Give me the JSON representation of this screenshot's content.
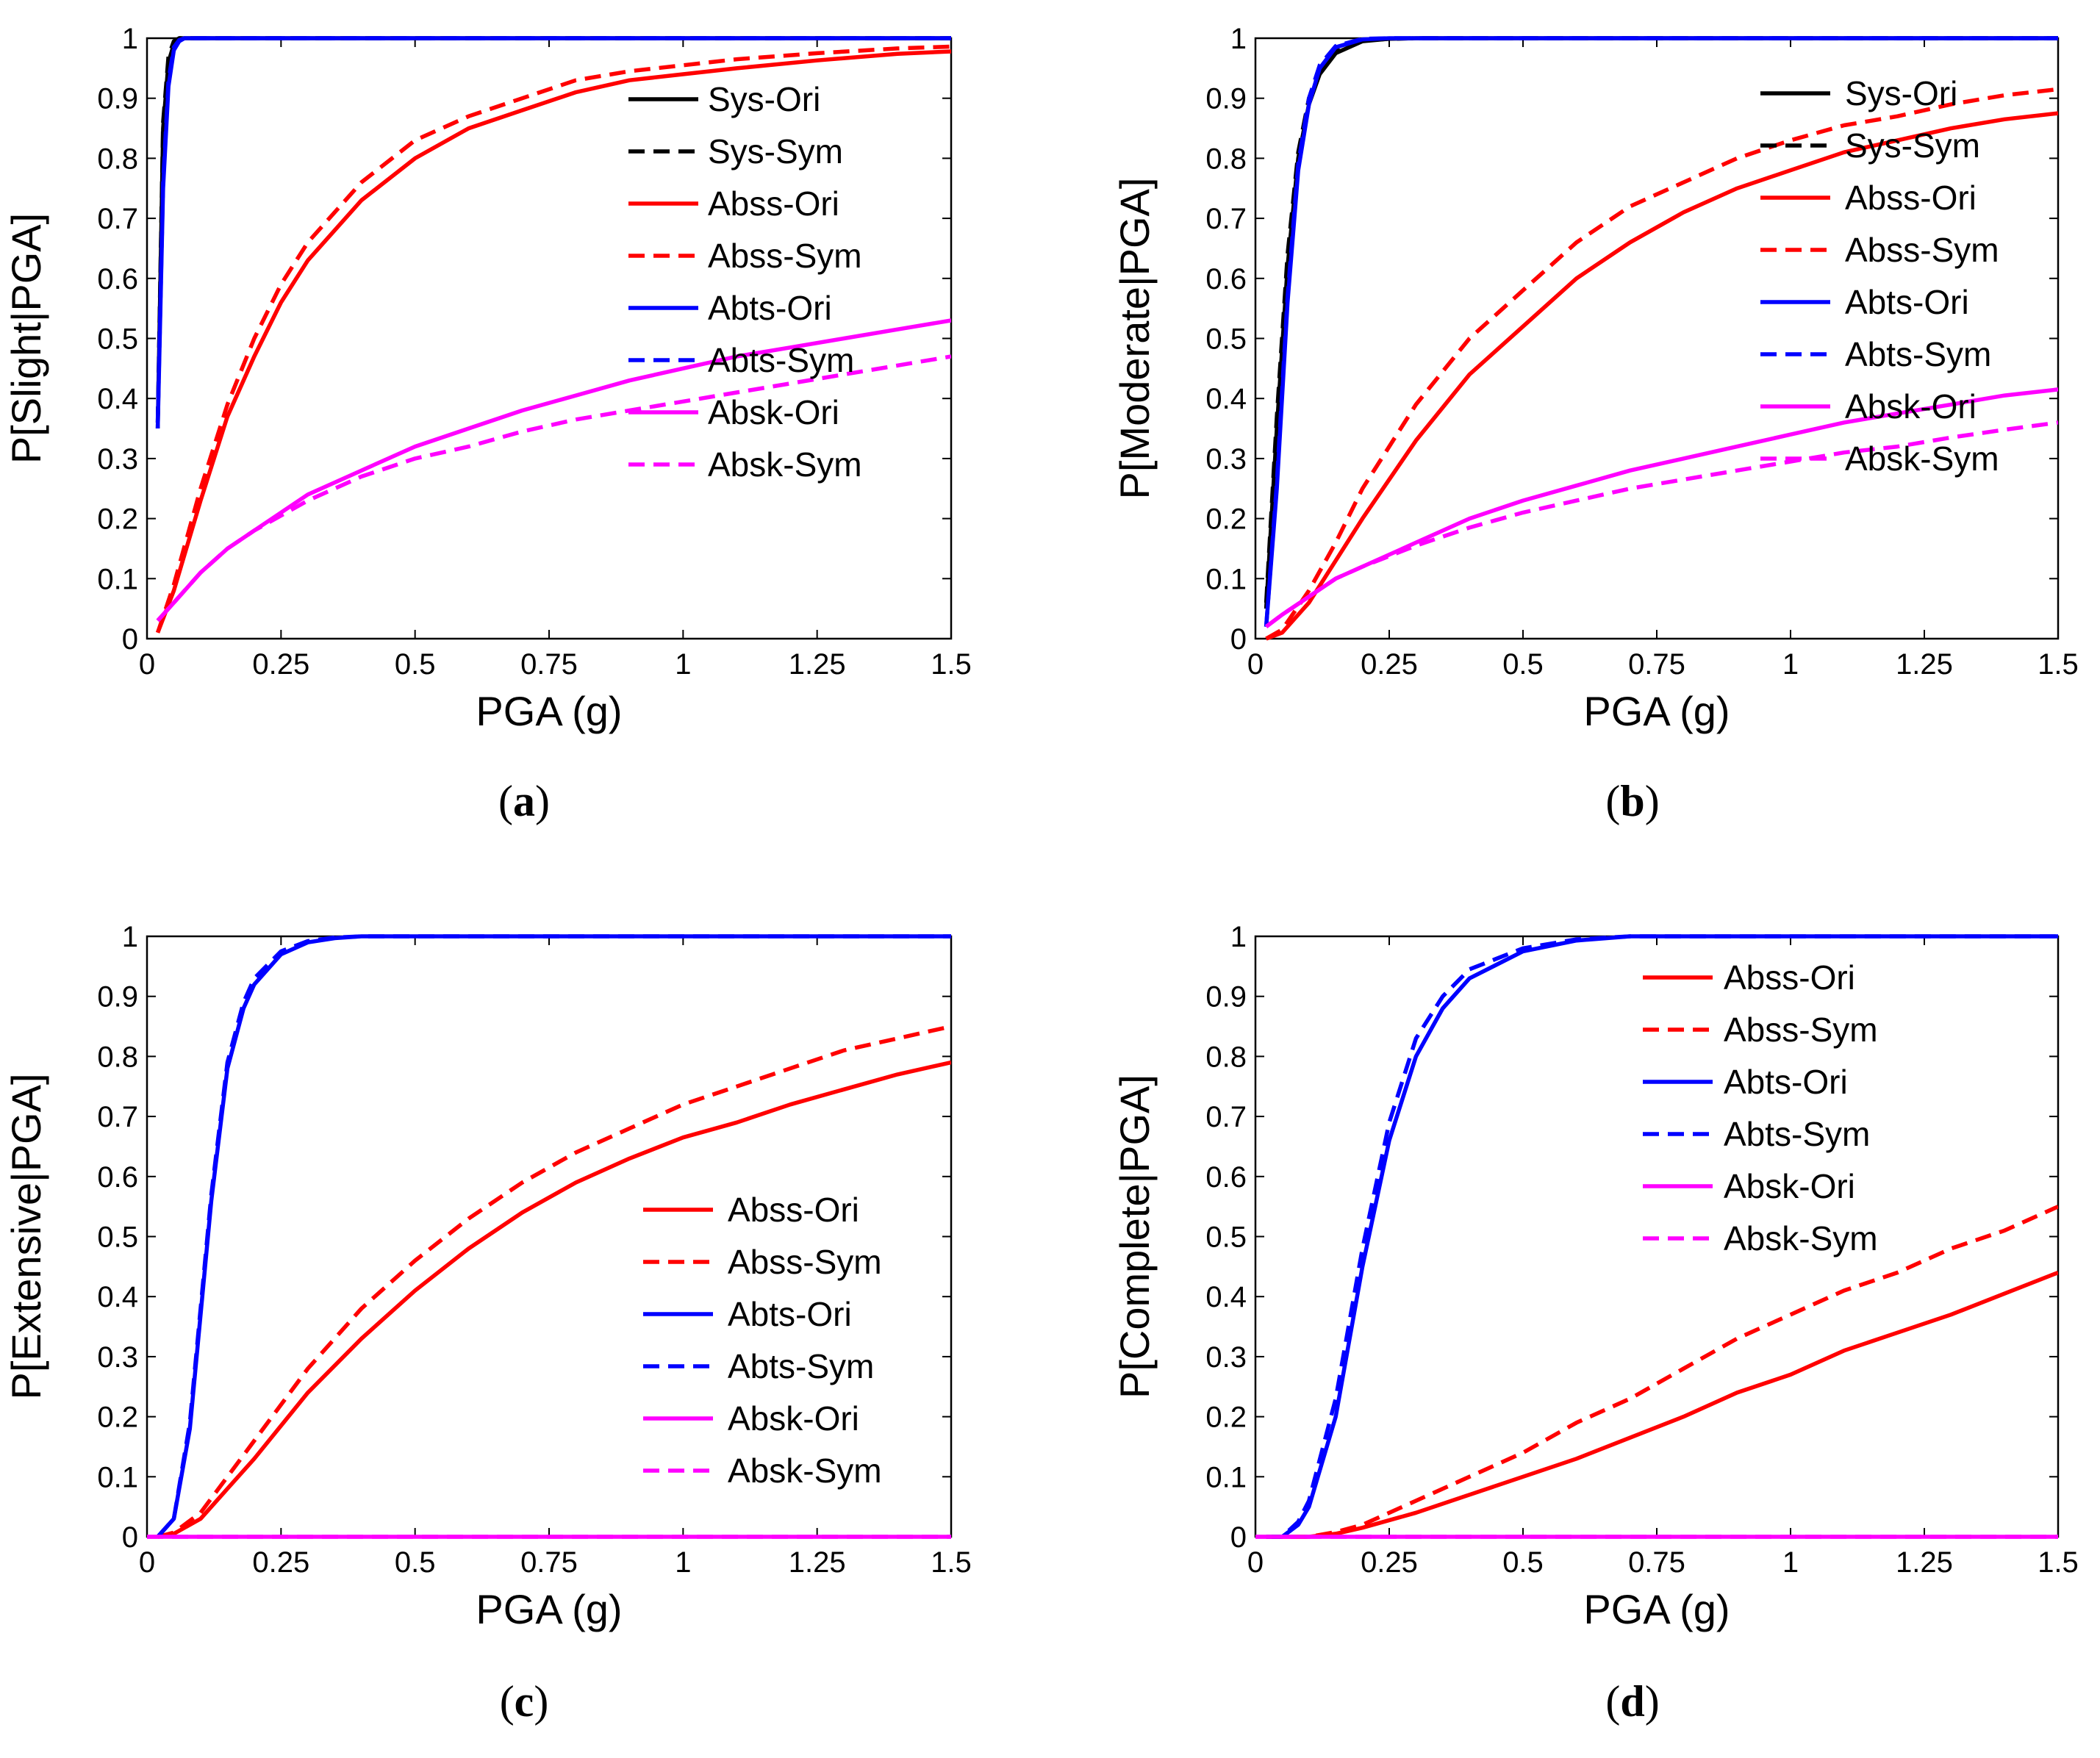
{
  "figure": {
    "panels": [
      "a",
      "b",
      "c",
      "d"
    ]
  },
  "chart_data": [
    {
      "panel": "a",
      "caption": "a",
      "type": "line",
      "title": "",
      "xlabel": "PGA (g)",
      "ylabel": "P[Slight|PGA]",
      "xlim": [
        0,
        1.5
      ],
      "ylim": [
        0,
        1
      ],
      "xticks": [
        "0",
        "0.25",
        "0.5",
        "0.75",
        "1",
        "1.25",
        "1.5"
      ],
      "yticks": [
        "0",
        "0.1",
        "0.2",
        "0.3",
        "0.4",
        "0.5",
        "0.6",
        "0.7",
        "0.8",
        "0.9",
        "1"
      ],
      "legend_position": "right",
      "series": [
        {
          "name": "Sys-Ori",
          "color": "#000000",
          "dash": false,
          "x": [
            0.02,
            0.03,
            0.04,
            0.05,
            0.06,
            1.5
          ],
          "y": [
            0.35,
            0.85,
            0.96,
            0.99,
            1.0,
            1.0
          ]
        },
        {
          "name": "Sys-Sym",
          "color": "#000000",
          "dash": true,
          "x": [
            0.02,
            0.03,
            0.04,
            0.05,
            0.06,
            1.5
          ],
          "y": [
            0.36,
            0.86,
            0.97,
            0.995,
            1.0,
            1.0
          ]
        },
        {
          "name": "Abss-Ori",
          "color": "#ff0000",
          "dash": false,
          "x": [
            0.02,
            0.05,
            0.1,
            0.15,
            0.2,
            0.25,
            0.3,
            0.4,
            0.5,
            0.6,
            0.7,
            0.8,
            0.9,
            1.0,
            1.1,
            1.25,
            1.4,
            1.5
          ],
          "y": [
            0.01,
            0.08,
            0.23,
            0.37,
            0.47,
            0.56,
            0.63,
            0.73,
            0.8,
            0.85,
            0.88,
            0.91,
            0.93,
            0.94,
            0.95,
            0.963,
            0.974,
            0.978
          ]
        },
        {
          "name": "Abss-Sym",
          "color": "#ff0000",
          "dash": true,
          "x": [
            0.02,
            0.05,
            0.1,
            0.15,
            0.2,
            0.25,
            0.3,
            0.4,
            0.5,
            0.6,
            0.7,
            0.8,
            0.9,
            1.0,
            1.1,
            1.25,
            1.4,
            1.5
          ],
          "y": [
            0.01,
            0.09,
            0.25,
            0.39,
            0.5,
            0.59,
            0.66,
            0.76,
            0.83,
            0.87,
            0.9,
            0.93,
            0.945,
            0.955,
            0.965,
            0.975,
            0.983,
            0.986
          ]
        },
        {
          "name": "Abts-Ori",
          "color": "#0000ff",
          "dash": false,
          "x": [
            0.02,
            0.03,
            0.04,
            0.05,
            0.06,
            0.07,
            1.5
          ],
          "y": [
            0.35,
            0.75,
            0.92,
            0.98,
            0.995,
            1.0,
            1.0
          ]
        },
        {
          "name": "Abts-Sym",
          "color": "#0000ff",
          "dash": true,
          "x": [
            0.02,
            0.03,
            0.04,
            0.05,
            0.06,
            0.07,
            1.5
          ],
          "y": [
            0.36,
            0.76,
            0.93,
            0.985,
            0.997,
            1.0,
            1.0
          ]
        },
        {
          "name": "Absk-Ori",
          "color": "#ff00ff",
          "dash": false,
          "x": [
            0.02,
            0.05,
            0.1,
            0.15,
            0.2,
            0.3,
            0.4,
            0.5,
            0.6,
            0.7,
            0.8,
            0.9,
            1.0,
            1.1,
            1.2,
            1.3,
            1.4,
            1.5
          ],
          "y": [
            0.03,
            0.06,
            0.11,
            0.15,
            0.18,
            0.24,
            0.28,
            0.32,
            0.35,
            0.38,
            0.405,
            0.43,
            0.45,
            0.47,
            0.485,
            0.5,
            0.515,
            0.53
          ]
        },
        {
          "name": "Absk-Sym",
          "color": "#ff00ff",
          "dash": true,
          "x": [
            0.02,
            0.05,
            0.1,
            0.15,
            0.2,
            0.3,
            0.4,
            0.5,
            0.6,
            0.7,
            0.8,
            0.9,
            1.0,
            1.1,
            1.2,
            1.3,
            1.4,
            1.5
          ],
          "y": [
            0.03,
            0.06,
            0.11,
            0.15,
            0.18,
            0.23,
            0.27,
            0.3,
            0.32,
            0.345,
            0.365,
            0.38,
            0.395,
            0.41,
            0.425,
            0.44,
            0.455,
            0.47
          ]
        }
      ]
    },
    {
      "panel": "b",
      "caption": "b",
      "type": "line",
      "title": "",
      "xlabel": "PGA (g)",
      "ylabel": "P[Moderate|PGA]",
      "xlim": [
        0,
        1.5
      ],
      "ylim": [
        0,
        1
      ],
      "xticks": [
        "0",
        "0.25",
        "0.5",
        "0.75",
        "1",
        "1.25",
        "1.5"
      ],
      "yticks": [
        "0",
        "0.1",
        "0.2",
        "0.3",
        "0.4",
        "0.5",
        "0.6",
        "0.7",
        "0.8",
        "0.9",
        "1"
      ],
      "legend_position": "right",
      "series": [
        {
          "name": "Sys-Ori",
          "color": "#000000",
          "dash": false,
          "x": [
            0.02,
            0.04,
            0.06,
            0.08,
            0.1,
            0.12,
            0.15,
            0.2,
            0.25,
            0.3,
            1.5
          ],
          "y": [
            0.05,
            0.35,
            0.62,
            0.8,
            0.89,
            0.94,
            0.975,
            0.995,
            0.999,
            1.0,
            1.0
          ]
        },
        {
          "name": "Sys-Sym",
          "color": "#000000",
          "dash": true,
          "x": [
            0.02,
            0.04,
            0.06,
            0.08,
            0.1,
            0.12,
            0.15,
            0.2,
            0.25,
            0.3,
            1.5
          ],
          "y": [
            0.06,
            0.37,
            0.64,
            0.81,
            0.9,
            0.945,
            0.978,
            0.996,
            0.999,
            1.0,
            1.0
          ]
        },
        {
          "name": "Abss-Ori",
          "color": "#ff0000",
          "dash": false,
          "x": [
            0.02,
            0.05,
            0.1,
            0.15,
            0.2,
            0.3,
            0.4,
            0.5,
            0.6,
            0.7,
            0.8,
            0.9,
            1.0,
            1.1,
            1.2,
            1.3,
            1.4,
            1.5
          ],
          "y": [
            0.0,
            0.01,
            0.06,
            0.13,
            0.2,
            0.33,
            0.44,
            0.52,
            0.6,
            0.66,
            0.71,
            0.75,
            0.78,
            0.81,
            0.83,
            0.85,
            0.865,
            0.875
          ]
        },
        {
          "name": "Abss-Sym",
          "color": "#ff0000",
          "dash": true,
          "x": [
            0.02,
            0.05,
            0.1,
            0.15,
            0.2,
            0.3,
            0.4,
            0.5,
            0.6,
            0.7,
            0.8,
            0.9,
            1.0,
            1.1,
            1.2,
            1.3,
            1.4,
            1.5
          ],
          "y": [
            0.0,
            0.015,
            0.08,
            0.16,
            0.25,
            0.39,
            0.5,
            0.58,
            0.66,
            0.72,
            0.76,
            0.8,
            0.83,
            0.855,
            0.87,
            0.89,
            0.905,
            0.915
          ]
        },
        {
          "name": "Abts-Ori",
          "color": "#0000ff",
          "dash": false,
          "x": [
            0.02,
            0.04,
            0.06,
            0.08,
            0.1,
            0.12,
            0.15,
            0.2,
            0.25,
            1.5
          ],
          "y": [
            0.02,
            0.25,
            0.56,
            0.78,
            0.89,
            0.95,
            0.985,
            0.998,
            1.0,
            1.0
          ]
        },
        {
          "name": "Abts-Sym",
          "color": "#0000ff",
          "dash": true,
          "x": [
            0.02,
            0.04,
            0.06,
            0.08,
            0.1,
            0.12,
            0.15,
            0.2,
            0.25,
            1.5
          ],
          "y": [
            0.02,
            0.26,
            0.57,
            0.79,
            0.9,
            0.955,
            0.987,
            0.999,
            1.0,
            1.0
          ]
        },
        {
          "name": "Absk-Ori",
          "color": "#ff00ff",
          "dash": false,
          "x": [
            0.02,
            0.05,
            0.1,
            0.15,
            0.2,
            0.3,
            0.4,
            0.5,
            0.6,
            0.7,
            0.8,
            0.9,
            1.0,
            1.1,
            1.2,
            1.3,
            1.4,
            1.5
          ],
          "y": [
            0.02,
            0.04,
            0.07,
            0.1,
            0.12,
            0.16,
            0.2,
            0.23,
            0.255,
            0.28,
            0.3,
            0.32,
            0.34,
            0.36,
            0.375,
            0.39,
            0.405,
            0.415
          ]
        },
        {
          "name": "Absk-Sym",
          "color": "#ff00ff",
          "dash": true,
          "x": [
            0.02,
            0.05,
            0.1,
            0.15,
            0.2,
            0.3,
            0.4,
            0.5,
            0.6,
            0.7,
            0.8,
            0.9,
            1.0,
            1.1,
            1.2,
            1.3,
            1.4,
            1.5
          ],
          "y": [
            0.02,
            0.04,
            0.07,
            0.1,
            0.12,
            0.155,
            0.185,
            0.21,
            0.23,
            0.25,
            0.265,
            0.28,
            0.295,
            0.31,
            0.32,
            0.335,
            0.348,
            0.36
          ]
        }
      ]
    },
    {
      "panel": "c",
      "caption": "c",
      "type": "line",
      "title": "",
      "xlabel": "PGA (g)",
      "ylabel": "P[Extensive|PGA]",
      "xlim": [
        0,
        1.5
      ],
      "ylim": [
        0,
        1
      ],
      "xticks": [
        "0",
        "0.25",
        "0.5",
        "0.75",
        "1",
        "1.25",
        "1.5"
      ],
      "yticks": [
        "0",
        "0.1",
        "0.2",
        "0.3",
        "0.4",
        "0.5",
        "0.6",
        "0.7",
        "0.8",
        "0.9",
        "1"
      ],
      "legend_position": "lower right",
      "series": [
        {
          "name": "Abss-Ori",
          "color": "#ff0000",
          "dash": false,
          "x": [
            0.02,
            0.05,
            0.1,
            0.15,
            0.2,
            0.3,
            0.4,
            0.5,
            0.6,
            0.7,
            0.8,
            0.9,
            1.0,
            1.1,
            1.2,
            1.3,
            1.4,
            1.5
          ],
          "y": [
            0.0,
            0.005,
            0.03,
            0.08,
            0.13,
            0.24,
            0.33,
            0.41,
            0.48,
            0.54,
            0.59,
            0.63,
            0.665,
            0.69,
            0.72,
            0.745,
            0.77,
            0.79
          ]
        },
        {
          "name": "Abss-Sym",
          "color": "#ff0000",
          "dash": true,
          "x": [
            0.02,
            0.05,
            0.1,
            0.15,
            0.2,
            0.3,
            0.4,
            0.5,
            0.6,
            0.7,
            0.8,
            0.9,
            1.0,
            1.1,
            1.2,
            1.3,
            1.4,
            1.5
          ],
          "y": [
            0.0,
            0.007,
            0.04,
            0.1,
            0.16,
            0.28,
            0.38,
            0.46,
            0.53,
            0.59,
            0.64,
            0.68,
            0.72,
            0.75,
            0.78,
            0.81,
            0.83,
            0.85
          ]
        },
        {
          "name": "Abts-Ori",
          "color": "#0000ff",
          "dash": false,
          "x": [
            0.02,
            0.05,
            0.08,
            0.1,
            0.12,
            0.15,
            0.18,
            0.2,
            0.25,
            0.3,
            0.35,
            0.4,
            1.5
          ],
          "y": [
            0.0,
            0.03,
            0.18,
            0.37,
            0.56,
            0.78,
            0.88,
            0.92,
            0.97,
            0.99,
            0.997,
            1.0,
            1.0
          ]
        },
        {
          "name": "Abts-Sym",
          "color": "#0000ff",
          "dash": true,
          "x": [
            0.02,
            0.05,
            0.08,
            0.1,
            0.12,
            0.15,
            0.18,
            0.2,
            0.25,
            0.3,
            0.35,
            0.4,
            1.5
          ],
          "y": [
            0.0,
            0.03,
            0.19,
            0.38,
            0.57,
            0.79,
            0.89,
            0.93,
            0.975,
            0.992,
            0.998,
            1.0,
            1.0
          ]
        },
        {
          "name": "Absk-Ori",
          "color": "#ff00ff",
          "dash": false,
          "x": [
            0.0,
            1.5
          ],
          "y": [
            0.0,
            0.0
          ]
        },
        {
          "name": "Absk-Sym",
          "color": "#ff00ff",
          "dash": true,
          "x": [
            0.0,
            1.5
          ],
          "y": [
            0.0,
            0.0
          ]
        }
      ]
    },
    {
      "panel": "d",
      "caption": "d",
      "type": "line",
      "title": "",
      "xlabel": "PGA (g)",
      "ylabel": "P[Complete|PGA]",
      "xlim": [
        0,
        1.5
      ],
      "ylim": [
        0,
        1
      ],
      "xticks": [
        "0",
        "0.25",
        "0.5",
        "0.75",
        "1",
        "1.25",
        "1.5"
      ],
      "yticks": [
        "0",
        "0.1",
        "0.2",
        "0.3",
        "0.4",
        "0.5",
        "0.6",
        "0.7",
        "0.8",
        "0.9",
        "1"
      ],
      "legend_position": "top-right",
      "series": [
        {
          "name": "Abss-Ori",
          "color": "#ff0000",
          "dash": false,
          "x": [
            0.02,
            0.1,
            0.15,
            0.2,
            0.3,
            0.4,
            0.5,
            0.6,
            0.7,
            0.8,
            0.9,
            1.0,
            1.1,
            1.2,
            1.3,
            1.4,
            1.5
          ],
          "y": [
            0.0,
            0.0,
            0.005,
            0.015,
            0.04,
            0.07,
            0.1,
            0.13,
            0.165,
            0.2,
            0.24,
            0.27,
            0.31,
            0.34,
            0.37,
            0.405,
            0.44
          ]
        },
        {
          "name": "Abss-Sym",
          "color": "#ff0000",
          "dash": true,
          "x": [
            0.02,
            0.1,
            0.15,
            0.2,
            0.3,
            0.4,
            0.5,
            0.6,
            0.7,
            0.8,
            0.9,
            1.0,
            1.1,
            1.2,
            1.3,
            1.4,
            1.5
          ],
          "y": [
            0.0,
            0.0,
            0.008,
            0.02,
            0.06,
            0.1,
            0.14,
            0.19,
            0.23,
            0.28,
            0.33,
            0.37,
            0.41,
            0.44,
            0.48,
            0.51,
            0.55
          ]
        },
        {
          "name": "Abts-Ori",
          "color": "#0000ff",
          "dash": false,
          "x": [
            0.02,
            0.05,
            0.08,
            0.1,
            0.15,
            0.2,
            0.25,
            0.3,
            0.35,
            0.4,
            0.5,
            0.6,
            0.7,
            1.5
          ],
          "y": [
            0.0,
            0.0,
            0.02,
            0.05,
            0.2,
            0.45,
            0.66,
            0.8,
            0.88,
            0.93,
            0.975,
            0.993,
            1.0,
            1.0
          ]
        },
        {
          "name": "Abts-Sym",
          "color": "#0000ff",
          "dash": true,
          "x": [
            0.02,
            0.05,
            0.08,
            0.1,
            0.15,
            0.2,
            0.25,
            0.3,
            0.35,
            0.4,
            0.5,
            0.6,
            0.7,
            1.5
          ],
          "y": [
            0.0,
            0.0,
            0.025,
            0.06,
            0.23,
            0.48,
            0.69,
            0.83,
            0.9,
            0.945,
            0.98,
            0.995,
            1.0,
            1.0
          ]
        },
        {
          "name": "Absk-Ori",
          "color": "#ff00ff",
          "dash": false,
          "x": [
            0.0,
            1.5
          ],
          "y": [
            0.0,
            0.0
          ]
        },
        {
          "name": "Absk-Sym",
          "color": "#ff00ff",
          "dash": true,
          "x": [
            0.0,
            1.5
          ],
          "y": [
            0.0,
            0.0
          ]
        }
      ]
    }
  ]
}
